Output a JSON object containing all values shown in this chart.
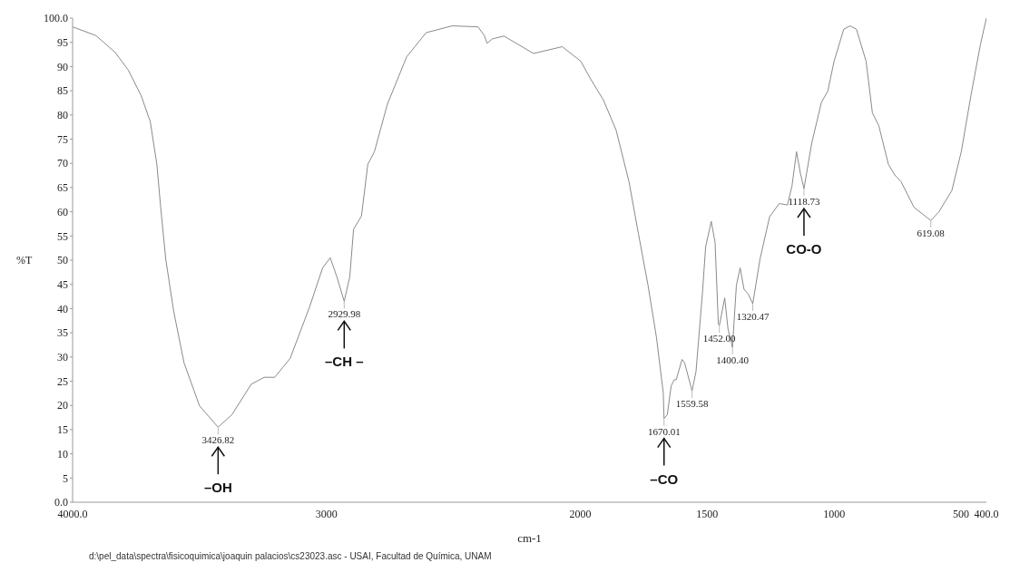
{
  "chart_data": {
    "type": "line",
    "xlabel": "cm-1",
    "ylabel": "%T",
    "xlim": [
      4000,
      400
    ],
    "xticks": [
      {
        "value": 4000,
        "label": "4000.0"
      },
      3000,
      2000,
      1500,
      1000,
      500,
      {
        "value": 400,
        "label": "400.0"
      }
    ],
    "ylim": [
      0,
      100
    ],
    "yticks": [
      {
        "value": 0,
        "label": "0.0"
      },
      5,
      10,
      15,
      20,
      25,
      30,
      35,
      40,
      45,
      50,
      55,
      60,
      65,
      70,
      75,
      80,
      85,
      90,
      95,
      {
        "value": 100,
        "label": "100.0"
      }
    ],
    "grid": false,
    "series": [
      {
        "color": "#8a8a8a",
        "x": [
          4000,
          3908,
          3832,
          3781,
          3730,
          3694,
          3668,
          3653,
          3633,
          3602,
          3561,
          3500,
          3426.82,
          3372,
          3296,
          3245,
          3204,
          3143,
          3066,
          3015,
          2985,
          2959,
          2929.98,
          2908,
          2893,
          2862,
          2837,
          2811,
          2760,
          2684,
          2607,
          2505,
          2403,
          2378,
          2367,
          2347,
          2301,
          2184,
          2071,
          1998,
          1960,
          1909,
          1859,
          1808,
          1771,
          1733,
          1700,
          1673,
          1670.01,
          1657,
          1642,
          1630,
          1622,
          1599,
          1589,
          1559.58,
          1544,
          1519,
          1506,
          1484,
          1469,
          1456,
          1452,
          1431,
          1418,
          1400.4,
          1385,
          1370,
          1355,
          1338,
          1320.47,
          1292,
          1254,
          1216,
          1184,
          1166,
          1148,
          1133,
          1118.73,
          1088,
          1050,
          1025,
          1000,
          962,
          937,
          912,
          874,
          849,
          824,
          786,
          761,
          736,
          685,
          619.08,
          587,
          536,
          499,
          461,
          423,
          400
        ],
        "values": [
          98.2,
          96.4,
          92.9,
          89.3,
          84,
          78.6,
          69.8,
          60.9,
          50.2,
          39.5,
          28.8,
          19.9,
          15.5,
          18.1,
          24.4,
          25.8,
          25.8,
          29.7,
          40.4,
          48.4,
          50.5,
          46.6,
          41.5,
          46.6,
          56.4,
          59.1,
          69.8,
          72.4,
          82.2,
          92,
          97,
          98.4,
          98.2,
          96.4,
          94.8,
          95.7,
          96.3,
          92.7,
          94.1,
          91.1,
          87.5,
          83.1,
          76.9,
          66.2,
          55.5,
          44.8,
          34.1,
          22.6,
          17.3,
          18.1,
          24,
          25.3,
          25.3,
          29.5,
          28.8,
          23,
          27,
          43,
          52.8,
          58,
          53.7,
          36.8,
          36.5,
          42.2,
          35.8,
          32,
          44.8,
          48.4,
          44,
          43,
          41,
          50.2,
          59,
          61.7,
          61.4,
          65.3,
          72.4,
          68,
          64.8,
          74.2,
          82.6,
          84.9,
          91.1,
          97.7,
          98.4,
          97.7,
          91.1,
          80.4,
          77.8,
          69.8,
          67.6,
          66.2,
          60.9,
          58.2,
          60,
          64.4,
          72.4,
          84,
          94.7,
          100
        ]
      }
    ],
    "annotations": [
      {
        "text": "3426.82",
        "x": 3426.82,
        "y": 15.5
      },
      "–OH",
      {
        "text": "2929.98",
        "x": 2929.98,
        "y": 41.5
      },
      "–CH –",
      {
        "text": "1670.01",
        "x": 1670.01,
        "y": 17.3
      },
      "–CO",
      {
        "text": "1559.58",
        "x": 1559.58,
        "y": 23
      },
      {
        "text": "1452.00",
        "x": 1452,
        "y": 36.5
      },
      {
        "text": "1400.40",
        "x": 1400.4,
        "y": 32
      },
      {
        "text": "1320.47",
        "x": 1320.47,
        "y": 41
      },
      {
        "text": "619.08",
        "x": 619.08,
        "y": 58.2
      },
      {
        "text": "1118.73",
        "x": 1118.73,
        "y": 64.8
      },
      "CO-O",
      "d:\\pel_data\\spectra\\fisicoquimica\\joaquin palacios\\cs23023.asc - USAI, Facultad de Química, UNAM"
    ]
  }
}
